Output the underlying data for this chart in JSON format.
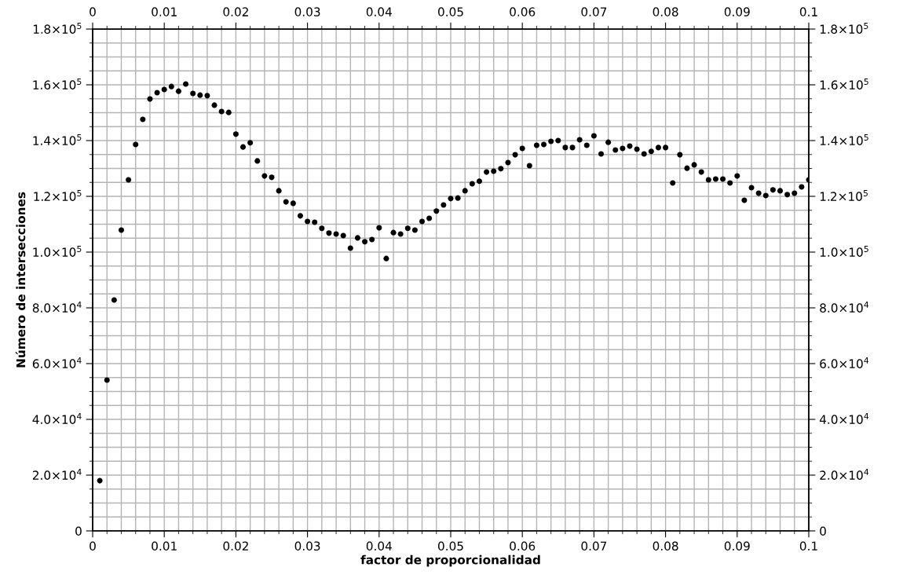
{
  "chart_data": {
    "type": "scatter",
    "xlabel": "factor de proporcionalidad",
    "ylabel": "Número de intersecciones",
    "x": [
      0.001,
      0.002,
      0.003,
      0.004,
      0.005,
      0.006,
      0.007,
      0.008,
      0.009,
      0.01,
      0.011,
      0.012,
      0.013,
      0.014,
      0.015,
      0.016,
      0.017,
      0.018,
      0.019,
      0.02,
      0.021,
      0.022,
      0.023,
      0.024,
      0.025,
      0.026,
      0.027,
      0.028,
      0.029,
      0.03,
      0.031,
      0.032,
      0.033,
      0.034,
      0.035,
      0.036,
      0.037,
      0.038,
      0.039,
      0.04,
      0.041,
      0.042,
      0.043,
      0.044,
      0.045,
      0.046,
      0.047,
      0.048,
      0.049,
      0.05,
      0.051,
      0.052,
      0.053,
      0.054,
      0.055,
      0.056,
      0.057,
      0.058,
      0.059,
      0.06,
      0.061,
      0.062,
      0.063,
      0.064,
      0.065,
      0.066,
      0.067,
      0.068,
      0.069,
      0.07,
      0.071,
      0.072,
      0.073,
      0.074,
      0.075,
      0.076,
      0.077,
      0.078,
      0.079,
      0.08,
      0.081,
      0.082,
      0.083,
      0.084,
      0.085,
      0.086,
      0.087,
      0.088,
      0.089,
      0.09,
      0.091,
      0.092,
      0.093,
      0.094,
      0.095,
      0.096,
      0.097,
      0.098,
      0.099,
      0.1
    ],
    "series": [
      {
        "color": "#000000",
        "values": [
          18000,
          54100,
          82800,
          107900,
          125900,
          138600,
          147600,
          154900,
          157200,
          158300,
          159400,
          157700,
          160300,
          156900,
          156300,
          156100,
          152700,
          150400,
          150100,
          142300,
          137700,
          139200,
          132700,
          127300,
          126800,
          122000,
          118000,
          117500,
          113000,
          111000,
          110700,
          108500,
          106800,
          106500,
          105900,
          101400,
          105100,
          103700,
          104500,
          108700,
          97700,
          107000,
          106500,
          108500,
          107900,
          111000,
          112100,
          114700,
          116900,
          119200,
          119400,
          122000,
          124500,
          125400,
          128700,
          129000,
          129900,
          132100,
          134900,
          137200,
          131000,
          138300,
          138600,
          139700,
          140000,
          137500,
          137500,
          140300,
          138300,
          141700,
          135200,
          139400,
          136600,
          137200,
          138000,
          136900,
          135200,
          136100,
          137500,
          137500,
          124800,
          134900,
          130100,
          131300,
          128700,
          125900,
          126200,
          126200,
          124800,
          127300,
          118600,
          123100,
          121100,
          120300,
          122300,
          122000,
          120600,
          121100,
          123400,
          125900
        ]
      }
    ],
    "xlim": [
      0,
      0.1
    ],
    "xticks": [
      0,
      0.01,
      0.02,
      0.03,
      0.04,
      0.05,
      0.06,
      0.07,
      0.08,
      0.09,
      0.1
    ],
    "x2lim": [
      0,
      0.1
    ],
    "x2ticks": [
      0,
      0.01,
      0.02,
      0.03,
      0.04,
      0.05,
      0.06,
      0.07,
      0.08,
      0.09,
      0.1
    ],
    "ylim": [
      0,
      180000
    ],
    "yticks": [
      0,
      {
        "value": 20000,
        "label": "2.0×10$^{4}$"
      },
      {
        "value": 40000,
        "label": "4.0×10$^{4}$"
      },
      {
        "value": 60000,
        "label": "6.0×10$^{4}$"
      },
      {
        "value": 80000,
        "label": "8.0×10$^{4}$"
      },
      {
        "value": 100000,
        "label": "1.0×10$^{5}$"
      },
      {
        "value": 120000,
        "label": "1.2×10$^{5}$"
      },
      {
        "value": 140000,
        "label": "1.4×10$^{5}$"
      },
      {
        "value": 160000,
        "label": "1.6×10$^{5}$"
      },
      {
        "value": 180000,
        "label": "1.8×10$^{5}$"
      }
    ],
    "y2lim": [
      0,
      180000
    ],
    "y2ticks": [
      0,
      {
        "value": 20000,
        "label": "2.0×10$^{4}$"
      },
      {
        "value": 40000,
        "label": "4.0×10$^{4}$"
      },
      {
        "value": 60000,
        "label": "6.0×10$^{4}$"
      },
      {
        "value": 80000,
        "label": "8.0×10$^{4}$"
      },
      {
        "value": 100000,
        "label": "1.0×10$^{5}$"
      },
      {
        "value": 120000,
        "label": "1.2×10$^{5}$"
      },
      {
        "value": 140000,
        "label": "1.4×10$^{5}$"
      },
      {
        "value": 160000,
        "label": "1.6×10$^{5}$"
      },
      {
        "value": 180000,
        "label": "1.8×10$^{5}$"
      }
    ],
    "grid": true,
    "marker": "circle"
  }
}
